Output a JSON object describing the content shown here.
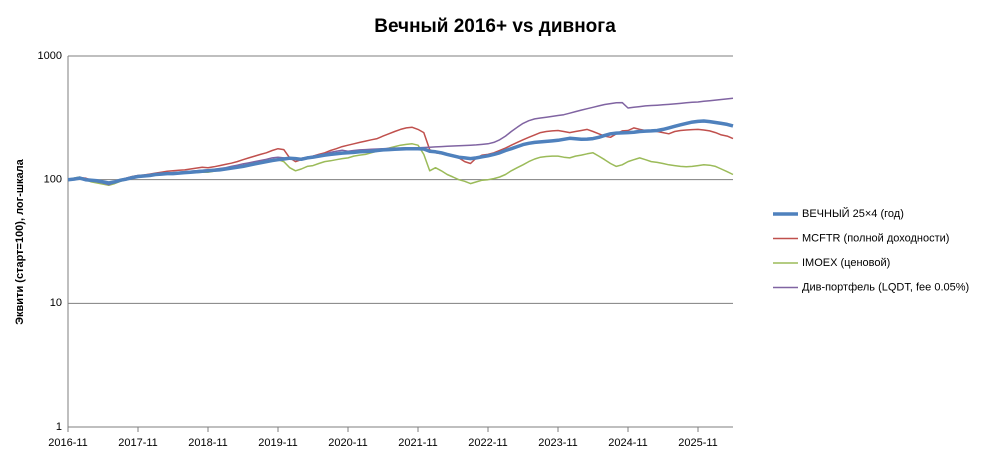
{
  "chart_data": {
    "type": "line",
    "title": "Вечный 2016+ vs дивнога",
    "y_label": "Эквити (старт=100), лог-шкала",
    "categories": [
      "2016-11",
      null,
      null,
      null,
      null,
      null,
      null,
      null,
      null,
      null,
      null,
      null,
      "2017-11",
      null,
      null,
      null,
      null,
      null,
      null,
      null,
      null,
      null,
      null,
      null,
      "2018-11",
      null,
      null,
      null,
      null,
      null,
      null,
      null,
      null,
      null,
      null,
      null,
      "2019-11",
      null,
      null,
      null,
      null,
      null,
      null,
      null,
      null,
      null,
      null,
      null,
      "2020-11",
      null,
      null,
      null,
      null,
      null,
      null,
      null,
      null,
      null,
      null,
      null,
      "2021-11",
      null,
      null,
      null,
      null,
      null,
      null,
      null,
      null,
      null,
      null,
      null,
      "2022-11",
      null,
      null,
      null,
      null,
      null,
      null,
      null,
      null,
      null,
      null,
      null,
      "2023-11",
      null,
      null,
      null,
      null,
      null,
      null,
      null,
      null,
      null,
      null,
      null,
      "2024-11",
      null,
      null,
      null,
      null,
      null,
      null,
      null,
      null,
      null,
      null,
      null,
      "2025-11",
      null,
      null,
      null,
      null,
      null,
      null
    ],
    "series": [
      {
        "name": "ВЕЧНЫЙ 25×4 (год)",
        "color": "#4f81bd",
        "values": [
          100,
          101,
          103,
          100,
          99,
          98,
          96,
          94,
          96,
          99,
          101,
          104,
          106,
          107,
          108,
          110,
          111,
          112,
          112,
          113,
          114,
          115,
          116,
          117,
          118,
          119,
          120,
          122,
          124,
          126,
          128,
          131,
          134,
          137,
          140,
          143,
          145,
          147,
          149,
          148,
          146,
          150,
          152,
          155,
          158,
          160,
          162,
          164,
          165,
          166,
          168,
          169,
          170,
          172,
          174,
          175,
          176,
          177,
          178,
          178,
          178,
          177,
          170,
          168,
          165,
          160,
          156,
          152,
          150,
          148,
          150,
          153,
          156,
          160,
          165,
          172,
          178,
          185,
          192,
          197,
          200,
          202,
          204,
          206,
          208,
          212,
          216,
          214,
          212,
          213,
          215,
          220,
          228,
          235,
          238,
          239,
          240,
          242,
          245,
          247,
          248,
          250,
          255,
          262,
          270,
          278,
          285,
          292,
          296,
          298,
          295,
          290,
          285,
          280,
          272
        ]
      },
      {
        "name": "MCFTR (полной доходности)",
        "color": "#c0504d",
        "values": [
          100,
          102,
          104,
          103,
          99,
          97,
          95,
          92,
          95,
          100,
          103,
          106,
          108,
          109,
          111,
          113,
          115,
          117,
          118,
          119,
          120,
          122,
          124,
          126,
          125,
          127,
          130,
          133,
          136,
          140,
          145,
          150,
          155,
          160,
          165,
          172,
          178,
          175,
          150,
          140,
          145,
          150,
          155,
          160,
          165,
          172,
          178,
          185,
          190,
          195,
          200,
          205,
          210,
          215,
          225,
          235,
          245,
          255,
          262,
          265,
          255,
          240,
          175,
          165,
          162,
          160,
          158,
          150,
          140,
          135,
          150,
          158,
          160,
          165,
          172,
          180,
          190,
          200,
          210,
          220,
          230,
          240,
          245,
          248,
          250,
          245,
          240,
          245,
          250,
          255,
          245,
          235,
          225,
          220,
          235,
          248,
          250,
          262,
          255,
          250,
          248,
          245,
          240,
          235,
          245,
          250,
          252,
          254,
          255,
          252,
          248,
          240,
          230,
          225,
          215
        ]
      },
      {
        "name": "IMOEX (ценовой)",
        "color": "#9bbb59",
        "values": [
          100,
          103,
          105,
          100,
          96,
          94,
          92,
          90,
          93,
          97,
          100,
          103,
          105,
          106,
          108,
          109,
          110,
          111,
          111,
          112,
          113,
          114,
          114,
          115,
          115,
          117,
          119,
          121,
          123,
          126,
          130,
          134,
          138,
          141,
          143,
          144,
          145,
          140,
          125,
          118,
          122,
          128,
          130,
          135,
          140,
          142,
          145,
          148,
          150,
          155,
          158,
          160,
          165,
          170,
          175,
          180,
          185,
          190,
          193,
          195,
          190,
          160,
          118,
          125,
          118,
          110,
          105,
          100,
          97,
          93,
          96,
          99,
          100,
          102,
          105,
          110,
          118,
          125,
          132,
          140,
          147,
          152,
          154,
          155,
          155,
          152,
          150,
          155,
          158,
          162,
          165,
          155,
          145,
          135,
          128,
          132,
          140,
          145,
          150,
          145,
          140,
          138,
          135,
          132,
          130,
          128,
          127,
          128,
          130,
          132,
          131,
          128,
          122,
          116,
          110
        ]
      },
      {
        "name": "Див-портфель (LQDT, fee 0.05%)",
        "color": "#8064a2",
        "values": [
          100,
          102,
          104,
          102,
          98,
          96,
          94,
          91,
          95,
          99,
          102,
          105,
          107,
          108,
          110,
          111,
          112,
          113,
          114,
          115,
          116,
          117,
          118,
          119,
          120,
          121,
          123,
          125,
          128,
          131,
          134,
          137,
          140,
          143,
          146,
          150,
          152,
          150,
          148,
          146,
          149,
          152,
          155,
          158,
          162,
          166,
          170,
          173,
          170,
          172,
          174,
          175,
          176,
          177,
          178,
          179,
          180,
          180,
          181,
          181,
          181,
          182,
          183,
          184,
          185,
          186,
          187,
          188,
          189,
          190,
          191,
          193,
          195,
          200,
          210,
          225,
          245,
          265,
          285,
          300,
          310,
          315,
          320,
          325,
          330,
          335,
          345,
          355,
          365,
          375,
          385,
          395,
          405,
          412,
          418,
          420,
          380,
          385,
          390,
          395,
          398,
          400,
          403,
          406,
          410,
          414,
          418,
          422,
          425,
          430,
          435,
          440,
          445,
          450,
          455
        ]
      }
    ],
    "log_y": true,
    "ylim": [
      1,
      1000
    ],
    "yticks": [
      1,
      10,
      100,
      1000
    ],
    "grid": true,
    "legend": "right"
  }
}
